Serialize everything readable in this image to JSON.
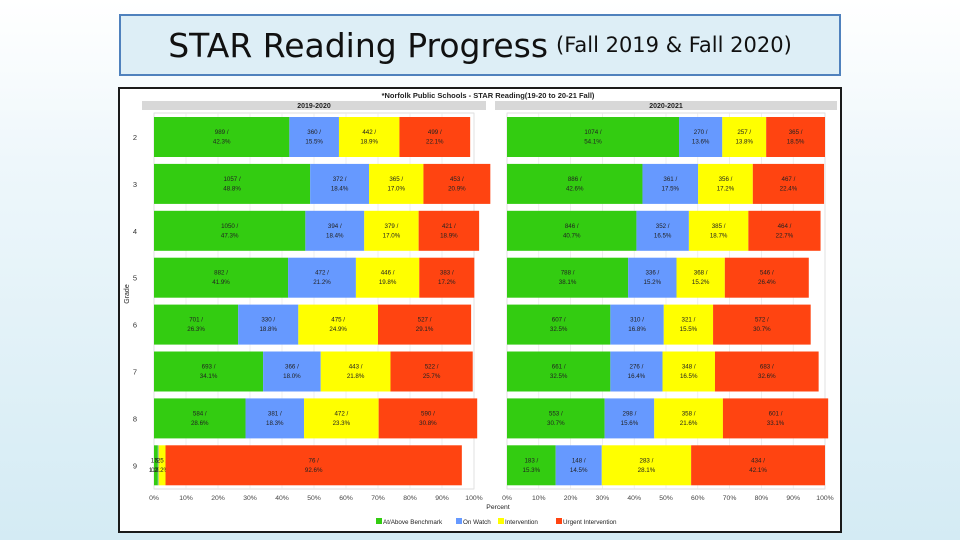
{
  "slide": {
    "title": "STAR Reading Progress",
    "subtitle": "(Fall 2019 & Fall 2020)"
  },
  "chart_data": {
    "type": "bar",
    "orientation": "horizontal",
    "stacked": "percent",
    "title": "*Norfolk Public Schools - STAR Reading(19-20 to 20-21 Fall)",
    "xlabel": "Percent",
    "ylabel": "Grade",
    "xlim": [
      0,
      100
    ],
    "x_ticks": [
      "0%",
      "10%",
      "20%",
      "30%",
      "40%",
      "50%",
      "60%",
      "70%",
      "80%",
      "90%",
      "100%"
    ],
    "categories": [
      "2",
      "3",
      "4",
      "5",
      "6",
      "7",
      "8",
      "9"
    ],
    "legend_position": "bottom",
    "colors": {
      "At/Above Benchmark": "#33cc11",
      "On Watch": "#6699ff",
      "Intervention": "#ffff00",
      "Urgent Intervention": "#ff4411"
    },
    "legend": [
      "At/Above Benchmark",
      "On Watch",
      "Intervention",
      "Urgent Intervention"
    ],
    "panels": [
      {
        "name": "2019-2020",
        "series": [
          {
            "name": "At/Above Benchmark",
            "counts": [
              "989",
              "1057",
              "1050",
              "882",
              "701",
              "693",
              "584",
              "17"
            ],
            "values": [
              42.3,
              48.8,
              47.3,
              41.9,
              26.3,
              34.1,
              28.6,
              1.2
            ]
          },
          {
            "name": "On Watch",
            "counts": [
              "360",
              "372",
              "394",
              "472",
              "330",
              "366",
              "381",
              "5"
            ],
            "values": [
              15.5,
              18.4,
              18.4,
              21.2,
              18.8,
              18.0,
              18.3,
              0.2
            ]
          },
          {
            "name": "Intervention",
            "counts": [
              "442",
              "365",
              "379",
              "446",
              "475",
              "443",
              "472",
              "25"
            ],
            "values": [
              18.9,
              17.0,
              17.0,
              19.8,
              24.9,
              21.8,
              23.3,
              2.2
            ]
          },
          {
            "name": "Urgent Intervention",
            "counts": [
              "499",
              "453",
              "421",
              "383",
              "527",
              "522",
              "590",
              "76"
            ],
            "values": [
              22.1,
              20.9,
              18.9,
              17.2,
              29.1,
              25.7,
              30.8,
              92.6
            ]
          }
        ],
        "label_rows": [
          [
            "989 /",
            "360 /",
            "442 /",
            "499 /"
          ],
          [
            "42.3%",
            "15.5%",
            "18.9%",
            "22.1%"
          ],
          [
            "1057 /",
            "372 /",
            "365 /",
            "453 /"
          ],
          [
            "48.8%",
            "18.4%",
            "17.0%",
            "20.9%"
          ],
          [
            "1050 /",
            "394 /",
            "379 /",
            "421 /"
          ],
          [
            "47.3%",
            "18.4%",
            "17.0%",
            "18.9%"
          ],
          [
            "882 /",
            "472 /",
            "446 /",
            "383 /"
          ],
          [
            "41.9%",
            "21.2%",
            "19.8%",
            "17.2%"
          ],
          [
            "701 /",
            "330 /",
            "475 /",
            "527 /"
          ],
          [
            "26.3%",
            "18.8%",
            "24.9%",
            "29.1%"
          ],
          [
            "693 /",
            "366 /",
            "443 /",
            "522 /"
          ],
          [
            "34.1%",
            "18.0%",
            "21.8%",
            "25.7%"
          ],
          [
            "584 /",
            "381 /",
            "472 /",
            "590 /"
          ],
          [
            "28.6%",
            "18.3%",
            "23.3%",
            "30.8%"
          ],
          [
            "17 /",
            "5 /",
            "25 /",
            "76 /"
          ],
          [
            "1.2%",
            "0.2%",
            "2.2%",
            "92.6%"
          ]
        ]
      },
      {
        "name": "2020-2021",
        "series": [
          {
            "name": "At/Above Benchmark",
            "counts": [
              "1074",
              "886",
              "846",
              "788",
              "607",
              "661",
              "553",
              "183"
            ],
            "values": [
              54.1,
              42.6,
              40.7,
              38.1,
              32.5,
              32.5,
              30.7,
              15.3
            ]
          },
          {
            "name": "On Watch",
            "counts": [
              "270",
              "361",
              "352",
              "336",
              "310",
              "276",
              "298",
              "148"
            ],
            "values": [
              13.6,
              17.5,
              16.5,
              15.2,
              16.8,
              16.4,
              15.6,
              14.5
            ]
          },
          {
            "name": "Intervention",
            "counts": [
              "257",
              "356",
              "385",
              "368",
              "321",
              "348",
              "358",
              "283"
            ],
            "values": [
              13.8,
              17.2,
              18.7,
              15.2,
              15.5,
              16.5,
              21.6,
              28.1
            ]
          },
          {
            "name": "Urgent Intervention",
            "counts": [
              "365",
              "467",
              "464",
              "546",
              "572",
              "683",
              "601",
              "434"
            ],
            "values": [
              18.5,
              22.4,
              22.7,
              26.4,
              30.7,
              32.6,
              33.1,
              42.1
            ]
          }
        ],
        "label_rows": [
          [
            "1074 /",
            "270 /",
            "257 /",
            "365 /"
          ],
          [
            "54.1%",
            "13.6%",
            "13.8%",
            "18.5%"
          ],
          [
            "886 /",
            "361 /",
            "356 /",
            "467 /"
          ],
          [
            "42.6%",
            "17.5%",
            "17.2%",
            "22.4%"
          ],
          [
            "846 /",
            "352 /",
            "385 /",
            "464 /"
          ],
          [
            "40.7%",
            "16.5%",
            "18.7%",
            "22.7%"
          ],
          [
            "788 /",
            "336 /",
            "368 /",
            "546 /"
          ],
          [
            "38.1%",
            "15.2%",
            "15.2%",
            "26.4%"
          ],
          [
            "607 /",
            "310 /",
            "321 /",
            "572 /"
          ],
          [
            "32.5%",
            "16.8%",
            "15.5%",
            "30.7%"
          ],
          [
            "661 /",
            "276 /",
            "348 /",
            "683 /"
          ],
          [
            "32.5%",
            "16.4%",
            "16.5%",
            "32.6%"
          ],
          [
            "553 /",
            "298 /",
            "358 /",
            "601 /"
          ],
          [
            "30.7%",
            "15.6%",
            "21.6%",
            "33.1%"
          ],
          [
            "183 /",
            "148 /",
            "283 /",
            "434 /"
          ],
          [
            "15.3%",
            "14.5%",
            "28.1%",
            "42.1%"
          ]
        ]
      }
    ]
  }
}
